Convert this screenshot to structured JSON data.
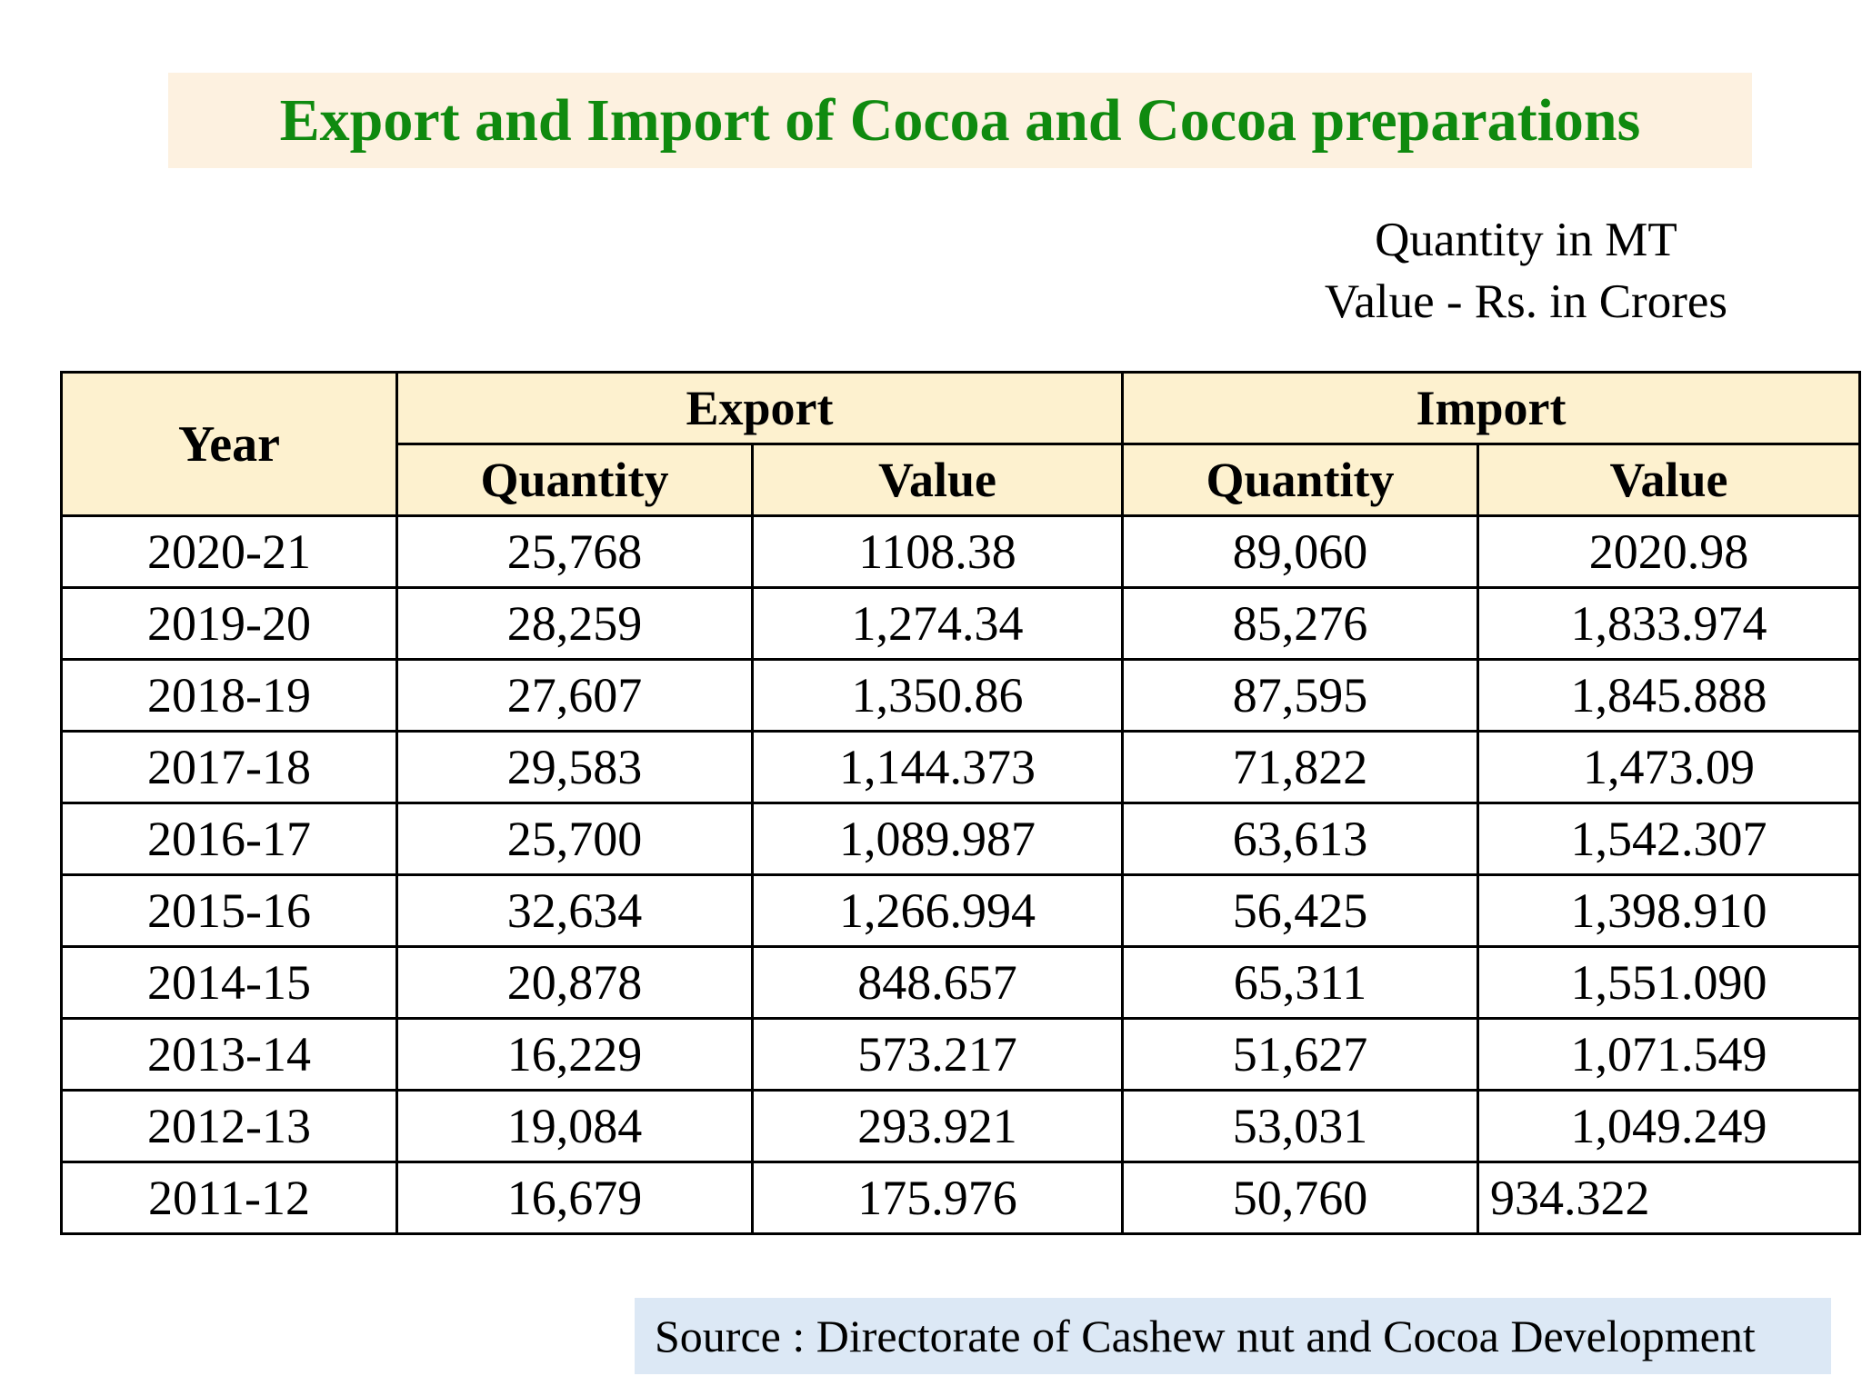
{
  "title": "Export and Import of Cocoa and Cocoa preparations",
  "units": {
    "line1": "Quantity in MT",
    "line2": "Value - Rs. in Crores"
  },
  "table": {
    "year_header": "Year",
    "export_header": "Export",
    "import_header": "Import",
    "sub_headers": [
      "Quantity",
      "Value",
      "Quantity",
      "Value"
    ],
    "rows": [
      {
        "year": "2020-21",
        "exp_qty": "25,768",
        "exp_val": "1108.38",
        "imp_qty": "89,060",
        "imp_val": "2020.98"
      },
      {
        "year": "2019-20",
        "exp_qty": "28,259",
        "exp_val": "1,274.34",
        "imp_qty": "85,276",
        "imp_val": "1,833.974"
      },
      {
        "year": "2018-19",
        "exp_qty": "27,607",
        "exp_val": "1,350.86",
        "imp_qty": "87,595",
        "imp_val": "1,845.888"
      },
      {
        "year": "2017-18",
        "exp_qty": "29,583",
        "exp_val": "1,144.373",
        "imp_qty": "71,822",
        "imp_val": "1,473.09"
      },
      {
        "year": "2016-17",
        "exp_qty": "25,700",
        "exp_val": "1,089.987",
        "imp_qty": "63,613",
        "imp_val": "1,542.307"
      },
      {
        "year": "2015-16",
        "exp_qty": "32,634",
        "exp_val": "1,266.994",
        "imp_qty": "56,425",
        "imp_val": "1,398.910"
      },
      {
        "year": "2014-15",
        "exp_qty": "20,878",
        "exp_val": "848.657",
        "imp_qty": "65,311",
        "imp_val": "1,551.090"
      },
      {
        "year": "2013-14",
        "exp_qty": "16,229",
        "exp_val": "573.217",
        "imp_qty": "51,627",
        "imp_val": "1,071.549"
      },
      {
        "year": "2012-13",
        "exp_qty": "19,084",
        "exp_val": "293.921",
        "imp_qty": "53,031",
        "imp_val": "1,049.249"
      },
      {
        "year": "2011-12",
        "exp_qty": "16,679",
        "exp_val": "175.976",
        "imp_qty": "50,760",
        "imp_val": "934.322"
      }
    ]
  },
  "source": "Source : Directorate of Cashew nut and Cocoa Development",
  "colors": {
    "title_text": "#0f8a0f",
    "title_background": "#fdf1e0",
    "header_background": "#fdf1cf",
    "source_background": "#dce8f5"
  }
}
